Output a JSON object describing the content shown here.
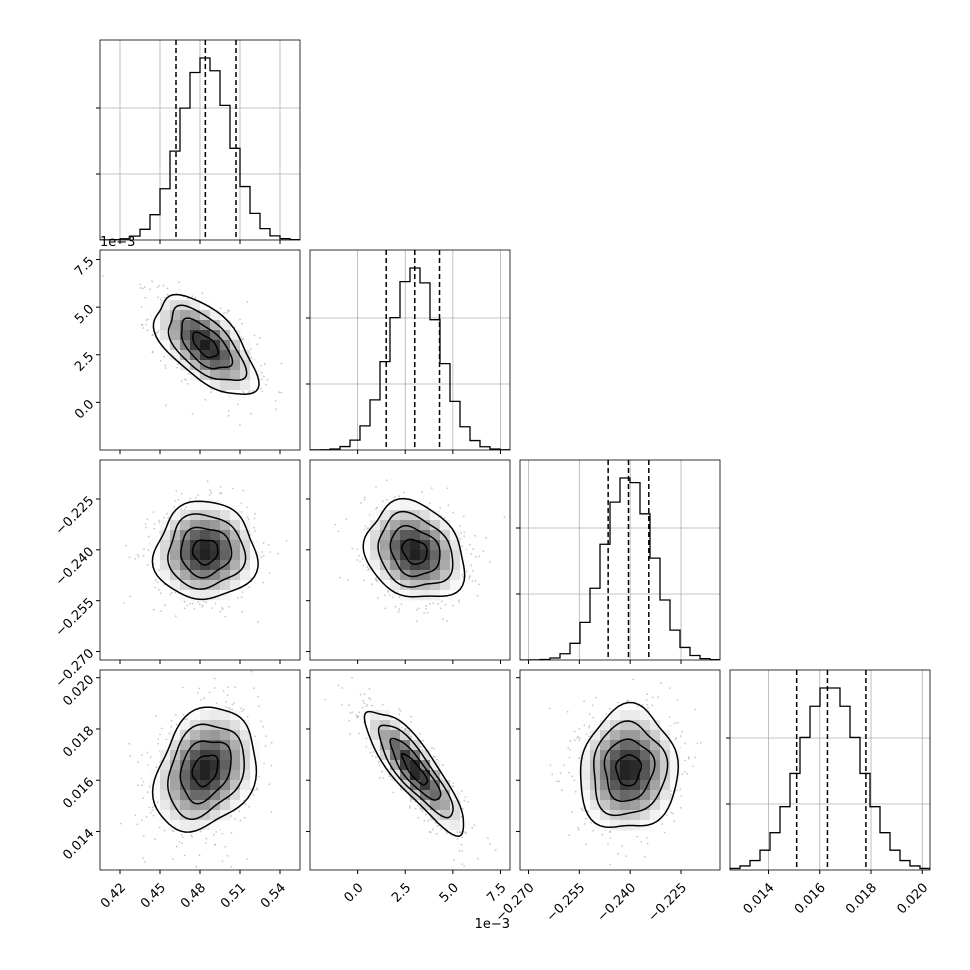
{
  "chart_data": {
    "type": "corner",
    "parameters": [
      {
        "range": [
          0.405,
          0.555
        ],
        "ticks": [
          0.42,
          0.45,
          0.48,
          0.51,
          0.54
        ],
        "tick_labels": [
          "0.42",
          "0.45",
          "0.48",
          "0.51",
          "0.54"
        ],
        "offset_text": "",
        "mean": 0.484,
        "std": 0.019,
        "quantiles": [
          0.462,
          0.484,
          0.507
        ]
      },
      {
        "range": [
          -0.0025,
          0.008
        ],
        "ticks": [
          0.0,
          0.0025,
          0.005,
          0.0075
        ],
        "tick_labels": [
          "0.0",
          "2.5",
          "5.0",
          "7.5"
        ],
        "offset_text": "1e−3",
        "mean": 0.003,
        "std": 0.0013,
        "quantiles": [
          0.0015,
          0.003,
          0.0043
        ]
      },
      {
        "range": [
          -0.2725,
          -0.2135
        ],
        "ticks": [
          -0.27,
          -0.255,
          -0.24,
          -0.225
        ],
        "tick_labels": [
          "−0.270",
          "−0.255",
          "−0.240",
          "−0.225"
        ],
        "offset_text": "",
        "mean": -0.2405,
        "std": 0.0072,
        "quantiles": [
          -0.2465,
          -0.2405,
          -0.2345
        ]
      },
      {
        "range": [
          0.0125,
          0.0203
        ],
        "ticks": [
          0.014,
          0.016,
          0.018,
          0.02
        ],
        "tick_labels": [
          "0.014",
          "0.016",
          "0.018",
          "0.020"
        ],
        "offset_text": "",
        "mean": 0.0164,
        "std": 0.0012,
        "quantiles": [
          0.0151,
          0.0163,
          0.0178
        ]
      }
    ],
    "correlations": [
      {
        "i": 1,
        "j": 0,
        "rho": -0.6
      },
      {
        "i": 2,
        "j": 0,
        "rho": 0.0
      },
      {
        "i": 2,
        "j": 1,
        "rho": -0.2
      },
      {
        "i": 3,
        "j": 0,
        "rho": 0.25
      },
      {
        "i": 3,
        "j": 1,
        "rho": -0.85
      },
      {
        "i": 3,
        "j": 2,
        "rho": 0.05
      }
    ],
    "quantile_line_style": "dashed",
    "grid": true,
    "histogram_bins": 20,
    "contour_levels": 4
  }
}
